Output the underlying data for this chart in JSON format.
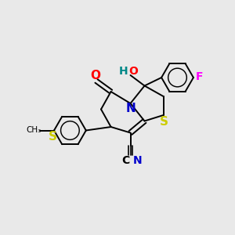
{
  "background_color": "#e9e9e9",
  "atom_colors": {
    "C": "#000000",
    "N": "#0000cc",
    "O": "#ff0000",
    "S": "#cccc00",
    "F": "#ff00ff",
    "H": "#008888",
    "CN_blue": "#0000cc"
  },
  "figsize": [
    3.0,
    3.0
  ],
  "dpi": 100
}
